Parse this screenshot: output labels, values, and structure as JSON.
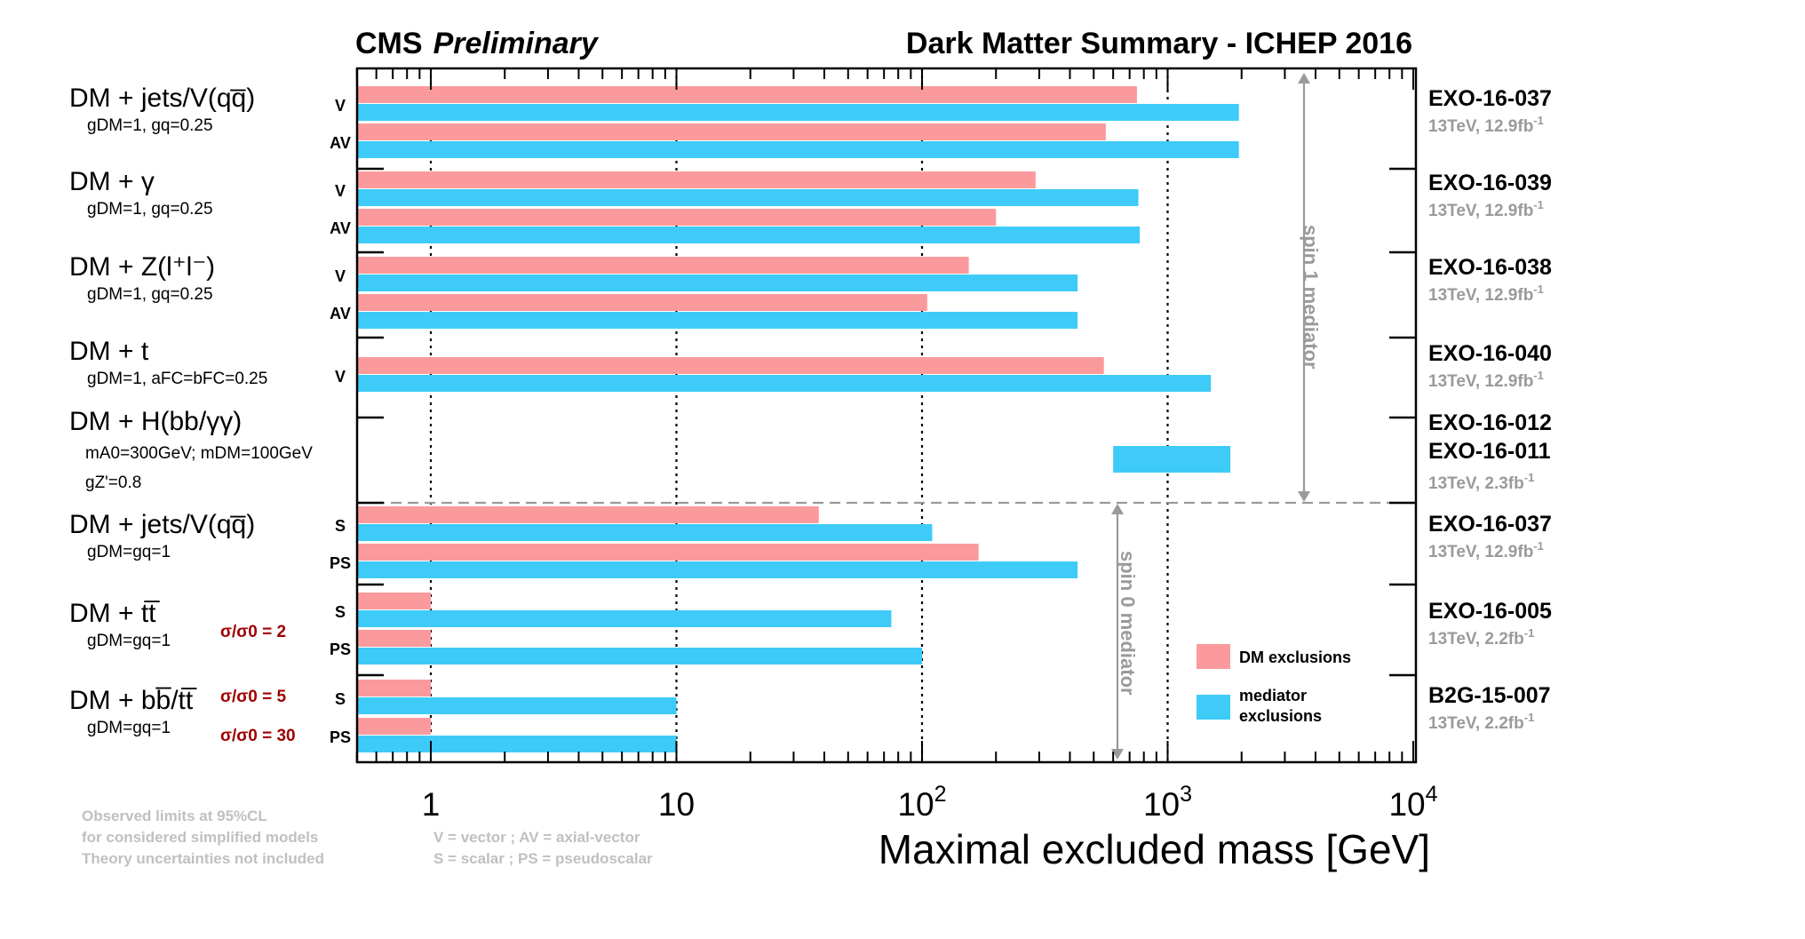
{
  "header": {
    "experiment": "CMS",
    "status": "Preliminary",
    "title": "Dark Matter Summary - ICHEP 2016"
  },
  "colors": {
    "dm": "#fb9a9d",
    "mediator": "#3ecbf8",
    "ratio_text": "#a00000",
    "grey_text": "#9a9a9a",
    "note_text": "#c0c0c0"
  },
  "legend": {
    "placement": "lower-right",
    "dm_label": "DM exclusions",
    "mediator_label_1": "mediator",
    "mediator_label_2": "exclusions"
  },
  "spin_labels": {
    "spin1": "spin 1 mediator",
    "spin0": "spin 0 mediator"
  },
  "notes": {
    "left": [
      "Observed limits at 95%CL",
      "for considered simplified models",
      "Theory uncertainties not included"
    ],
    "right": [
      "V = vector ; AV = axial-vector",
      "S = scalar ; PS = pseudoscalar"
    ]
  },
  "processes": [
    {
      "label": "DM + jets/V(qq̅)",
      "couplings": "gDM=1, gq=0.25"
    },
    {
      "label": "DM + γ",
      "couplings": "gDM=1, gq=0.25"
    },
    {
      "label": "DM + Z(l⁺l⁻)",
      "couplings": "gDM=1, gq=0.25"
    },
    {
      "label": "DM + t",
      "couplings": "gDM=1, aFC=bFC=0.25"
    },
    {
      "label": "DM + H(bb/γγ)",
      "couplings": "mA0=300GeV; mDM=100GeV; gZ'=0.8"
    },
    {
      "label": "DM + jets/V(qq̅)",
      "couplings": "gDM=gq=1"
    },
    {
      "label": "DM + tt̅",
      "couplings": "gDM=gq=1"
    },
    {
      "label": "DM + bb̅/tt̅",
      "couplings": "gDM=gq=1"
    }
  ],
  "ratio_labels": [
    "σ/σ0 = 2",
    "σ/σ0 = 5",
    "σ/σ0 = 30"
  ],
  "analyses": [
    {
      "ref": "EXO-16-037",
      "lumi": "13TeV, 12.9fb-1"
    },
    {
      "ref": "EXO-16-039",
      "lumi": "13TeV, 12.9fb-1"
    },
    {
      "ref": "EXO-16-038",
      "lumi": "13TeV, 12.9fb-1"
    },
    {
      "ref": "EXO-16-040",
      "lumi": "13TeV, 12.9fb-1"
    },
    {
      "ref": "EXO-16-012",
      "ref2": "EXO-16-011",
      "lumi": "13TeV, 2.3fb-1"
    },
    {
      "ref": "EXO-16-037",
      "lumi": "13TeV, 12.9fb-1"
    },
    {
      "ref": "EXO-16-005",
      "lumi": "13TeV, 2.2fb-1"
    },
    {
      "ref": "B2G-15-007",
      "lumi": "13TeV, 2.2fb-1"
    }
  ],
  "chart_data": {
    "type": "bar",
    "orientation": "horizontal",
    "title": "Dark Matter Summary - ICHEP 2016",
    "xlabel": "Maximal excluded mass [GeV]",
    "xscale": "log",
    "xlim": [
      0.5,
      10000
    ],
    "xticks": [
      "1",
      "10",
      "10^2",
      "10^3",
      "10^4"
    ],
    "gridlines_x": [
      1,
      10,
      100,
      1000
    ],
    "series": [
      {
        "name": "DM exclusions"
      },
      {
        "name": "mediator exclusions"
      }
    ],
    "rows": [
      {
        "type": "V",
        "dm": 750,
        "mediator": 1950
      },
      {
        "type": "AV",
        "dm": 560,
        "mediator": 1950
      },
      {
        "type": "V",
        "dm": 290,
        "mediator": 760
      },
      {
        "type": "AV",
        "dm": 200,
        "mediator": 770
      },
      {
        "type": "V",
        "dm": 155,
        "mediator": 430
      },
      {
        "type": "AV",
        "dm": 105,
        "mediator": 430
      },
      {
        "type": "V",
        "dm": 550,
        "mediator": 1500
      },
      {
        "type": "",
        "mediator_range": [
          600,
          1800
        ]
      },
      {
        "type": "S",
        "dm": 38,
        "mediator": 110
      },
      {
        "type": "PS",
        "dm": 170,
        "mediator": 430
      },
      {
        "type": "S",
        "dm": 1,
        "mediator": 75
      },
      {
        "type": "PS",
        "dm": 1,
        "mediator": 100
      },
      {
        "type": "S",
        "dm": 1,
        "mediator": 10
      },
      {
        "type": "PS",
        "dm": 1,
        "mediator": 10
      }
    ]
  }
}
